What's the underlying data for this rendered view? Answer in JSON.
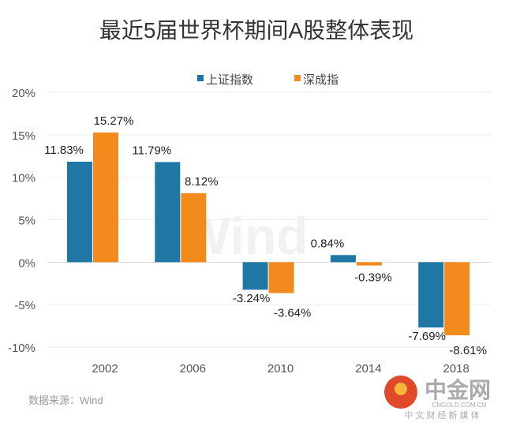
{
  "chart_data": {
    "type": "bar",
    "title": "最近5届世界杯期间A股整体表现",
    "categories": [
      "2002",
      "2006",
      "2010",
      "2014",
      "2018"
    ],
    "series": [
      {
        "name": "上证指数",
        "color": "#1f77a6",
        "values": [
          11.83,
          11.79,
          -3.24,
          0.84,
          -7.69
        ],
        "labels": [
          "11.83%",
          "11.79%",
          "-3.24%",
          "0.84%",
          "-7.69%"
        ]
      },
      {
        "name": "深成指",
        "color": "#f28a1e",
        "values": [
          15.27,
          8.12,
          -3.64,
          -0.39,
          -8.61
        ],
        "labels": [
          "15.27%",
          "8.12%",
          "-3.64%",
          "-0.39%",
          "-8.61%"
        ]
      }
    ],
    "yticks": [
      "20%",
      "15%",
      "10%",
      "5%",
      "0%",
      "-5%",
      "-10%"
    ],
    "ytick_values": [
      20,
      15,
      10,
      5,
      0,
      -5,
      -10
    ],
    "ylim": [
      -10,
      20
    ],
    "grid": true,
    "legend": "top-center",
    "watermark": "Wind",
    "source": "数据来源：Wind"
  },
  "logo": {
    "name": "中金网",
    "domain": "CNGOLD.COM.CN",
    "tagline": "中 文 财 经 新 媒 体"
  }
}
